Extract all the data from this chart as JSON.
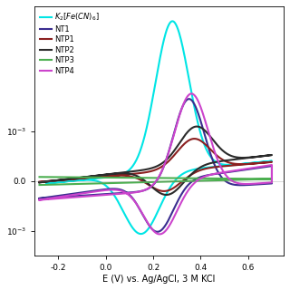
{
  "title": "",
  "xlabel": "E (V) vs. Ag/AgCl, 3 M KCl",
  "ylabel": "",
  "xlim": [
    -0.3,
    0.75
  ],
  "ylim": [
    -0.0015,
    0.0035
  ],
  "background_color": "#ffffff",
  "legend_entries": [
    "K₂[Fe(CN)₆]",
    "NT1",
    "NTP1",
    "NTP2",
    "NTP3",
    "NTP4"
  ],
  "line_colors": [
    "#00e5e5",
    "#3a2d8f",
    "#8b2020",
    "#2b2b2b",
    "#4caf50",
    "#cc44cc"
  ],
  "line_widths": [
    1.5,
    1.5,
    1.5,
    1.5,
    1.5,
    1.5
  ]
}
